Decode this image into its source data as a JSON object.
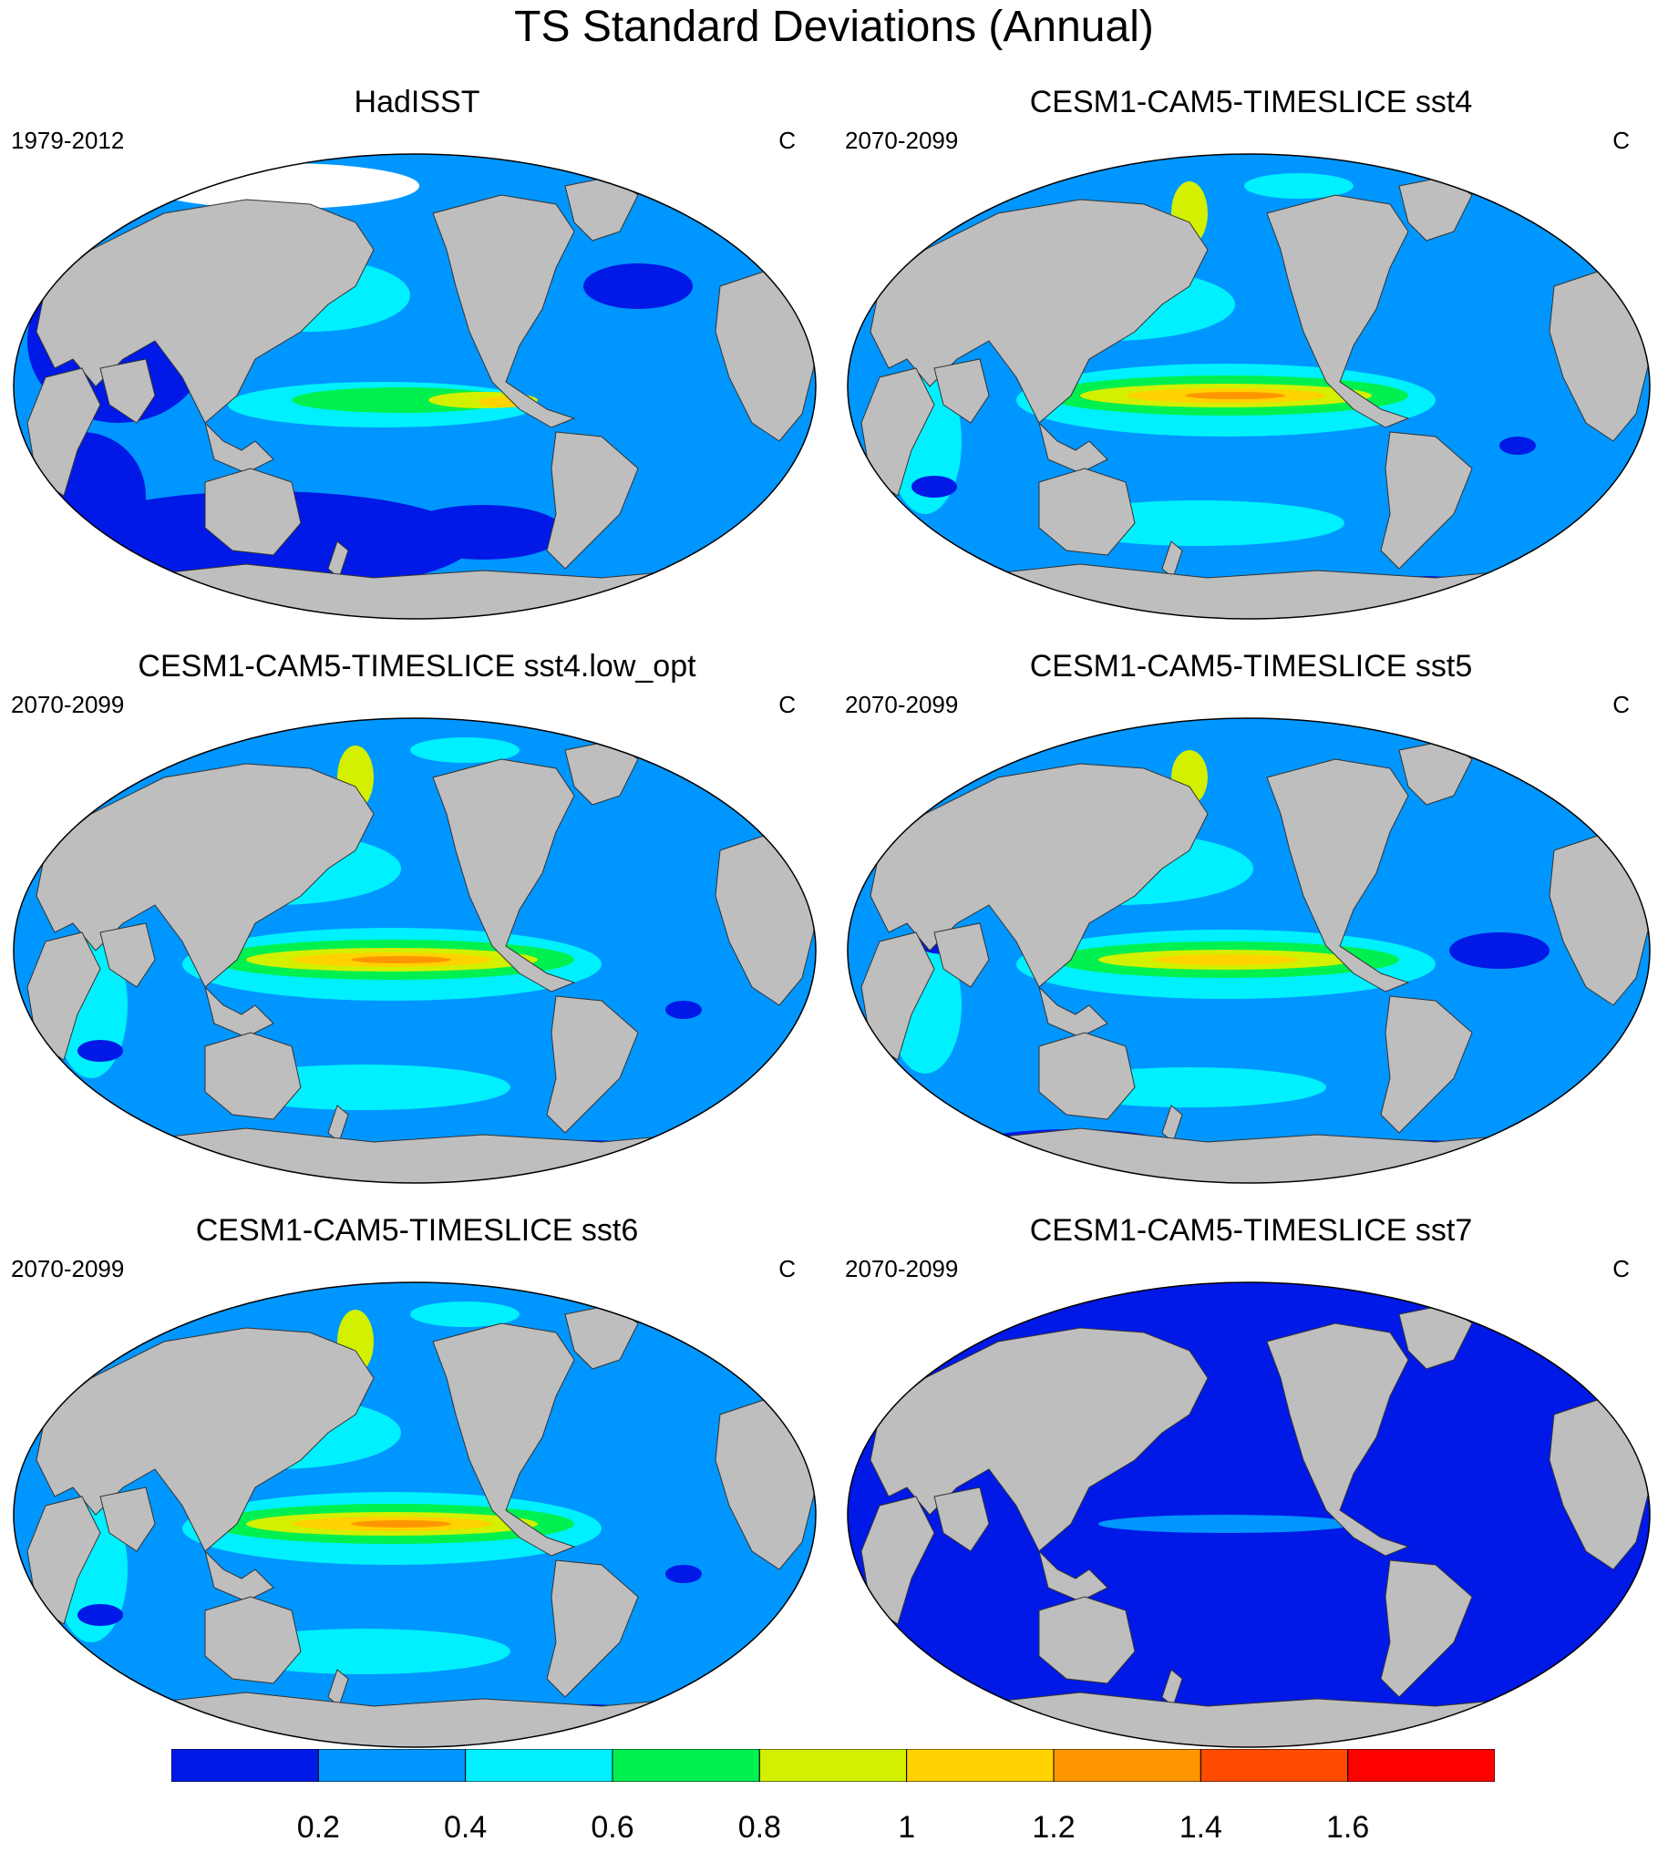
{
  "title": "TS Standard Deviations (Annual)",
  "panels": [
    {
      "title": "HadISST",
      "period": "1979-2012",
      "units": "C",
      "pattern": "obs"
    },
    {
      "title": "CESM1-CAM5-TIMESLICE sst4",
      "period": "2070-2099",
      "units": "C",
      "pattern": "model_strong"
    },
    {
      "title": "CESM1-CAM5-TIMESLICE sst4.low_opt",
      "period": "2070-2099",
      "units": "C",
      "pattern": "model_strong"
    },
    {
      "title": "CESM1-CAM5-TIMESLICE sst5",
      "period": "2070-2099",
      "units": "C",
      "pattern": "model_mid"
    },
    {
      "title": "CESM1-CAM5-TIMESLICE sst6",
      "period": "2070-2099",
      "units": "C",
      "pattern": "model_strong"
    },
    {
      "title": "CESM1-CAM5-TIMESLICE sst7",
      "period": "2070-2099",
      "units": "C",
      "pattern": "flat"
    }
  ],
  "colorbar": {
    "labels": [
      "0.2",
      "0.4",
      "0.6",
      "0.8",
      "1",
      "1.2",
      "1.4",
      "1.6"
    ],
    "colors": [
      "#0019e6",
      "#0096ff",
      "#00f0ff",
      "#00f050",
      "#d2f000",
      "#ffd200",
      "#ff9600",
      "#ff4b00",
      "#ff0000"
    ]
  },
  "land_color": "#bebebe",
  "sea_ice_color": "#ffffff"
}
